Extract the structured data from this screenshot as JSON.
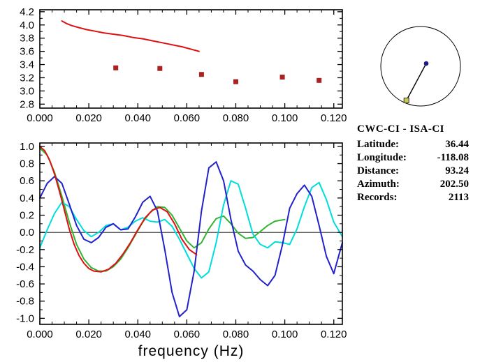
{
  "window": {
    "background": "#ffffff"
  },
  "station_info": {
    "title": "CWC-CI - ISA-CI",
    "fields": [
      {
        "label": "Latitude:",
        "value": "36.44"
      },
      {
        "label": "Longitude:",
        "value": "-118.08"
      },
      {
        "label": "Distance:",
        "value": "93.24"
      },
      {
        "label": "Azimuth:",
        "value": "202.50"
      },
      {
        "label": "Records:",
        "value": "2113"
      }
    ]
  },
  "map_inset": {
    "azimuth_deg": 202.5,
    "reference_station_color": "#1a1a8c",
    "pair_station_color": "#c8c84a",
    "circle_color": "#000000"
  },
  "chart_data": [
    {
      "type": "line",
      "title": "",
      "xlabel": "",
      "ylabel": "",
      "grid": false,
      "legend": "none",
      "xlim": [
        0,
        0.1235
      ],
      "ylim": [
        2.74,
        4.23
      ],
      "xticks": [
        0,
        0.02,
        0.04,
        0.06,
        0.08,
        0.1,
        0.12
      ],
      "xtick_labels": [
        "0.000",
        "0.020",
        "0.040",
        "0.060",
        "0.080",
        "0.100",
        "0.120"
      ],
      "yticks": [
        2.8,
        3.0,
        3.2,
        3.4,
        3.6,
        3.8,
        4.0,
        4.2
      ],
      "ytick_labels": [
        "2.8",
        "3.0",
        "3.2",
        "3.4",
        "3.6",
        "3.8",
        "4.0",
        "4.2"
      ],
      "xminor_step": 0.005,
      "yminor_step": 0.1,
      "series": [
        {
          "name": "red-dispersion-curve",
          "color": "#dd1111",
          "style": "line",
          "x": [
            0.009,
            0.011,
            0.013,
            0.016,
            0.019,
            0.022,
            0.026,
            0.03,
            0.034,
            0.038,
            0.042,
            0.046,
            0.05,
            0.054,
            0.058,
            0.062,
            0.065
          ],
          "y": [
            4.06,
            4.02,
            3.99,
            3.96,
            3.93,
            3.91,
            3.88,
            3.86,
            3.84,
            3.81,
            3.79,
            3.76,
            3.73,
            3.7,
            3.67,
            3.63,
            3.6
          ]
        },
        {
          "name": "red-square-measurement",
          "color": "#aa2222",
          "style": "squares",
          "x": [
            0.031,
            0.049,
            0.066,
            0.08,
            0.099,
            0.114
          ],
          "y": [
            3.35,
            3.34,
            3.25,
            3.14,
            3.21,
            3.16
          ]
        }
      ]
    },
    {
      "type": "line",
      "title": "",
      "xlabel": "frequency (Hz)",
      "ylabel": "",
      "grid": false,
      "legend": "none",
      "zero_line": true,
      "xlim": [
        0,
        0.1235
      ],
      "ylim": [
        -1.07,
        1.04
      ],
      "xticks": [
        0,
        0.02,
        0.04,
        0.06,
        0.08,
        0.1,
        0.12
      ],
      "xtick_labels": [
        "0.000",
        "0.020",
        "0.040",
        "0.060",
        "0.080",
        "0.100",
        "0.120"
      ],
      "yticks": [
        -1.0,
        -0.8,
        -0.6,
        -0.4,
        -0.2,
        0.0,
        0.2,
        0.4,
        0.6,
        0.8,
        1.0
      ],
      "ytick_labels": [
        "-1.0",
        "-0.8",
        "-0.6",
        "-0.4",
        "-0.2",
        "0.0",
        "0.2",
        "0.4",
        "0.6",
        "0.8",
        "1.0"
      ],
      "xminor_step": 0.005,
      "yminor_step": 0.1,
      "series": [
        {
          "name": "green-curve",
          "color": "#33b333",
          "style": "line",
          "x": [
            0.0,
            0.003,
            0.006,
            0.009,
            0.012,
            0.015,
            0.018,
            0.021,
            0.024,
            0.027,
            0.03,
            0.033,
            0.036,
            0.039,
            0.042,
            0.045,
            0.048,
            0.051,
            0.054,
            0.057,
            0.06,
            0.063,
            0.066,
            0.069,
            0.072,
            0.075,
            0.078,
            0.081,
            0.084,
            0.087,
            0.09,
            0.093,
            0.096,
            0.1
          ],
          "y": [
            0.98,
            0.9,
            0.7,
            0.42,
            0.12,
            -0.14,
            -0.31,
            -0.41,
            -0.45,
            -0.45,
            -0.4,
            -0.31,
            -0.18,
            -0.03,
            0.12,
            0.23,
            0.3,
            0.29,
            0.2,
            0.05,
            -0.1,
            -0.18,
            -0.12,
            0.04,
            0.16,
            0.19,
            0.1,
            -0.01,
            -0.07,
            -0.06,
            0.01,
            0.08,
            0.13,
            0.15
          ]
        },
        {
          "name": "cyan-curve",
          "color": "#00dddd",
          "style": "line",
          "x": [
            0.0,
            0.003,
            0.006,
            0.009,
            0.012,
            0.015,
            0.018,
            0.021,
            0.024,
            0.027,
            0.03,
            0.033,
            0.036,
            0.039,
            0.042,
            0.045,
            0.048,
            0.051,
            0.054,
            0.057,
            0.06,
            0.063,
            0.066,
            0.069,
            0.072,
            0.075,
            0.078,
            0.081,
            0.084,
            0.087,
            0.09,
            0.093,
            0.096,
            0.099,
            0.102,
            0.105,
            0.108,
            0.111,
            0.114,
            0.117,
            0.12,
            0.1235
          ],
          "y": [
            -0.18,
            0.03,
            0.22,
            0.35,
            0.3,
            0.15,
            0.02,
            -0.05,
            0.0,
            0.08,
            0.1,
            0.03,
            0.06,
            0.13,
            0.17,
            0.13,
            0.12,
            0.15,
            0.07,
            -0.08,
            -0.25,
            -0.42,
            -0.53,
            -0.46,
            -0.12,
            0.32,
            0.6,
            0.56,
            0.28,
            -0.02,
            -0.14,
            -0.18,
            -0.11,
            -0.12,
            -0.14,
            0.04,
            0.3,
            0.52,
            0.58,
            0.38,
            0.12,
            -0.05
          ]
        },
        {
          "name": "blue-curve",
          "color": "#2222cc",
          "style": "line",
          "x": [
            0.0,
            0.003,
            0.006,
            0.009,
            0.012,
            0.015,
            0.018,
            0.021,
            0.024,
            0.027,
            0.03,
            0.033,
            0.036,
            0.039,
            0.042,
            0.045,
            0.048,
            0.051,
            0.054,
            0.057,
            0.06,
            0.063,
            0.066,
            0.069,
            0.072,
            0.075,
            0.078,
            0.081,
            0.084,
            0.087,
            0.09,
            0.093,
            0.096,
            0.099,
            0.102,
            0.105,
            0.108,
            0.111,
            0.114,
            0.117,
            0.12,
            0.1235
          ],
          "y": [
            0.4,
            0.57,
            0.65,
            0.57,
            0.33,
            0.08,
            -0.08,
            -0.12,
            -0.06,
            0.06,
            0.1,
            0.03,
            0.04,
            0.18,
            0.35,
            0.42,
            0.25,
            -0.2,
            -0.7,
            -0.98,
            -0.9,
            -0.45,
            0.25,
            0.75,
            0.82,
            0.6,
            0.15,
            -0.22,
            -0.38,
            -0.45,
            -0.55,
            -0.62,
            -0.5,
            -0.15,
            0.28,
            0.45,
            0.55,
            0.42,
            0.08,
            -0.28,
            -0.48,
            -0.12
          ]
        },
        {
          "name": "red-curve",
          "color": "#dd1111",
          "style": "line",
          "x": [
            0.0,
            0.002,
            0.004,
            0.006,
            0.008,
            0.01,
            0.012,
            0.014,
            0.016,
            0.018,
            0.02,
            0.022,
            0.025,
            0.028,
            0.031,
            0.034,
            0.037,
            0.04,
            0.043,
            0.046,
            0.049,
            0.052,
            0.055,
            0.058,
            0.061,
            0.064
          ],
          "y": [
            1.0,
            0.95,
            0.84,
            0.68,
            0.48,
            0.26,
            0.04,
            -0.14,
            -0.27,
            -0.36,
            -0.42,
            -0.45,
            -0.46,
            -0.43,
            -0.36,
            -0.25,
            -0.12,
            0.03,
            0.17,
            0.26,
            0.29,
            0.24,
            0.1,
            -0.08,
            -0.2,
            -0.26
          ]
        }
      ]
    }
  ]
}
